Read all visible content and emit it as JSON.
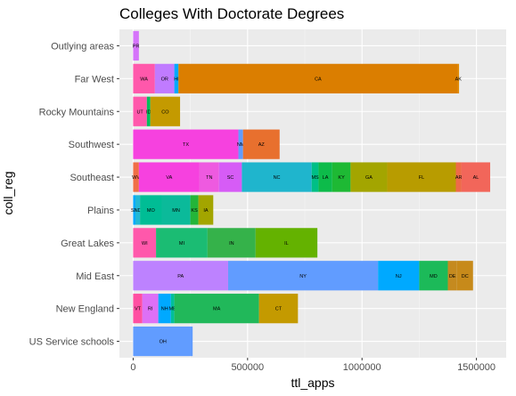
{
  "colors": {
    "panel_bg": "#ebebeb",
    "grid_major": "#ffffff",
    "grid_minor": "#f5f5f5",
    "tick": "#333333"
  },
  "chart_data": {
    "type": "bar",
    "orientation": "horizontal",
    "stacked": true,
    "title": "Colleges With Doctorate Degrees",
    "xlabel": "ttl_apps",
    "ylabel": "coll_reg",
    "xlim": [
      -60000,
      1630000
    ],
    "xticks": [
      0,
      500000,
      1000000,
      1500000
    ],
    "xtick_labels": [
      "0",
      "500000",
      "1000000",
      "1500000"
    ],
    "grid": true,
    "legend": "none",
    "categories": [
      "Outlying areas",
      "Far West",
      "Rocky Mountains",
      "Southwest",
      "Southeast",
      "Plains",
      "Great Lakes",
      "Mid East",
      "New England",
      "US Service schools"
    ],
    "rows": [
      {
        "category": "Outlying areas",
        "segments": [
          {
            "label": "PR",
            "value": 25000,
            "color": "#D574FA"
          }
        ]
      },
      {
        "category": "Far West",
        "segments": [
          {
            "label": "WA",
            "value": 95000,
            "color": "#FF58AB"
          },
          {
            "label": "OR",
            "value": 85000,
            "color": "#C07BFF"
          },
          {
            "label": "HI",
            "value": 18000,
            "color": "#00A9FF"
          },
          {
            "label": "CA",
            "value": 1220000,
            "color": "#DB7E00"
          },
          {
            "label": "AK",
            "value": 6000,
            "color": "#E18A00"
          }
        ]
      },
      {
        "category": "Rocky Mountains",
        "segments": [
          {
            "label": "UT",
            "value": 60000,
            "color": "#FF58AB"
          },
          {
            "label": "ID",
            "value": 15000,
            "color": "#00BD5C"
          },
          {
            "label": "CO",
            "value": 130000,
            "color": "#C49A00"
          }
        ]
      },
      {
        "category": "Southwest",
        "segments": [
          {
            "label": "TX",
            "value": 460000,
            "color": "#F641DF"
          },
          {
            "label": "NM",
            "value": 20000,
            "color": "#619CFF"
          },
          {
            "label": "AZ",
            "value": 160000,
            "color": "#E8702E"
          }
        ]
      },
      {
        "category": "Southeast",
        "segments": [
          {
            "label": "WV",
            "value": 25000,
            "color": "#F06E46"
          },
          {
            "label": "VA",
            "value": 265000,
            "color": "#F641DF"
          },
          {
            "label": "TN",
            "value": 85000,
            "color": "#EE5AE0"
          },
          {
            "label": "SC",
            "value": 100000,
            "color": "#D65CF6"
          },
          {
            "label": "NC",
            "value": 305000,
            "color": "#1FB5CD"
          },
          {
            "label": "MS",
            "value": 30000,
            "color": "#00BF86"
          },
          {
            "label": "LA",
            "value": 60000,
            "color": "#0DBB4A"
          },
          {
            "label": "KY",
            "value": 80000,
            "color": "#1EB934"
          },
          {
            "label": "GA",
            "value": 160000,
            "color": "#A3A500"
          },
          {
            "label": "FL",
            "value": 300000,
            "color": "#B89C00"
          },
          {
            "label": "AR",
            "value": 25000,
            "color": "#EE6A49"
          },
          {
            "label": "AL",
            "value": 125000,
            "color": "#F2665A"
          }
        ]
      },
      {
        "category": "Plains",
        "segments": [
          {
            "label": "SD",
            "value": 10000,
            "color": "#00A9FF"
          },
          {
            "label": "ND",
            "value": 20000,
            "color": "#22B8D5"
          },
          {
            "label": "MO",
            "value": 95000,
            "color": "#00BD95"
          },
          {
            "label": "MN",
            "value": 125000,
            "color": "#0BBA9A"
          },
          {
            "label": "KS",
            "value": 35000,
            "color": "#24B539"
          },
          {
            "label": "IA",
            "value": 65000,
            "color": "#A3A500"
          }
        ]
      },
      {
        "category": "Great Lakes",
        "segments": [
          {
            "label": "WI",
            "value": 100000,
            "color": "#FF58AB"
          },
          {
            "label": "MI",
            "value": 225000,
            "color": "#1BBC73"
          },
          {
            "label": "IN",
            "value": 210000,
            "color": "#35B24A"
          },
          {
            "label": "IL",
            "value": 270000,
            "color": "#64B200"
          }
        ]
      },
      {
        "category": "Mid East",
        "segments": [
          {
            "label": "PA",
            "value": 415000,
            "color": "#BD82FF"
          },
          {
            "label": "NY",
            "value": 655000,
            "color": "#619CFF"
          },
          {
            "label": "NJ",
            "value": 180000,
            "color": "#00A9FF"
          },
          {
            "label": "MD",
            "value": 125000,
            "color": "#1CBA59"
          },
          {
            "label": "DE",
            "value": 40000,
            "color": "#C58A1F"
          },
          {
            "label": "DC",
            "value": 70000,
            "color": "#C78A1A"
          }
        ]
      },
      {
        "category": "New England",
        "segments": [
          {
            "label": "VT",
            "value": 40000,
            "color": "#FF4FA2"
          },
          {
            "label": "RI",
            "value": 70000,
            "color": "#DD70F6"
          },
          {
            "label": "NH",
            "value": 55000,
            "color": "#00A9FF"
          },
          {
            "label": "ME",
            "value": 15000,
            "color": "#00BF9A"
          },
          {
            "label": "MA",
            "value": 370000,
            "color": "#21B85A"
          },
          {
            "label": "CT",
            "value": 170000,
            "color": "#C49A00"
          }
        ]
      },
      {
        "category": "US Service schools",
        "segments": [
          {
            "label": "OH",
            "value": 260000,
            "color": "#619CFF"
          }
        ]
      }
    ]
  }
}
